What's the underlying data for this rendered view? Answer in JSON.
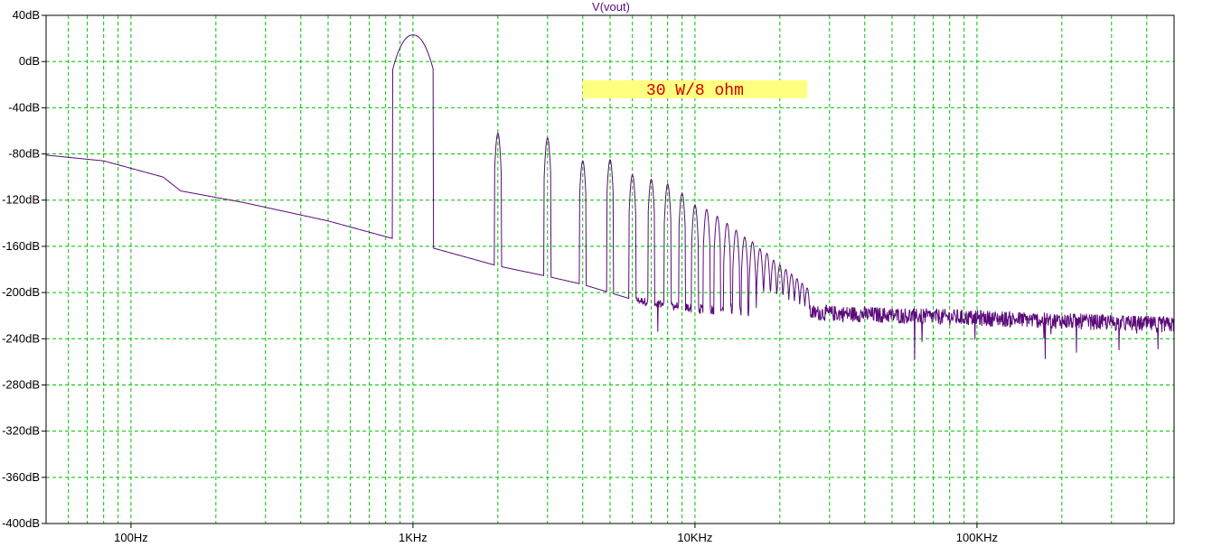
{
  "chart_data": {
    "type": "line",
    "title": "V(vout)",
    "xlabel": "",
    "ylabel": "",
    "xscale": "log",
    "xlim": [
      50,
      500000
    ],
    "ylim": [
      -400,
      40
    ],
    "grid": true,
    "colors": {
      "trace": "#5a0a78",
      "grid": "#00c000",
      "note_bg": "#ffff80",
      "note_text": "#d00000"
    },
    "x_ticks": [
      {
        "value": 100,
        "label": "100Hz"
      },
      {
        "value": 1000,
        "label": "1KHz"
      },
      {
        "value": 10000,
        "label": "10KHz"
      },
      {
        "value": 100000,
        "label": "100KHz"
      }
    ],
    "y_ticks": [
      {
        "value": 40,
        "label": "40dB"
      },
      {
        "value": 0,
        "label": "0dB"
      },
      {
        "value": -40,
        "label": "-40dB"
      },
      {
        "value": -80,
        "label": "-80dB"
      },
      {
        "value": -120,
        "label": "-120dB"
      },
      {
        "value": -160,
        "label": "-160dB"
      },
      {
        "value": -200,
        "label": "-200dB"
      },
      {
        "value": -240,
        "label": "-240dB"
      },
      {
        "value": -280,
        "label": "-280dB"
      },
      {
        "value": -320,
        "label": "-320dB"
      },
      {
        "value": -360,
        "label": "-360dB"
      },
      {
        "value": -400,
        "label": "-400dB"
      }
    ],
    "annotation": {
      "text": "30 W/8 ohm",
      "x": 4000,
      "x_end": 25000,
      "y": -24
    },
    "series": [
      {
        "fundamental": {
          "freq": 1000,
          "peak_db": 23
        },
        "harmonics": [
          {
            "freq": 2000,
            "peak_db": -62
          },
          {
            "freq": 3000,
            "peak_db": -66
          },
          {
            "freq": 4000,
            "peak_db": -86
          },
          {
            "freq": 5000,
            "peak_db": -85
          },
          {
            "freq": 6000,
            "peak_db": -98
          },
          {
            "freq": 7000,
            "peak_db": -102
          },
          {
            "freq": 8000,
            "peak_db": -106
          },
          {
            "freq": 9000,
            "peak_db": -114
          },
          {
            "freq": 10000,
            "peak_db": -124
          },
          {
            "freq": 11000,
            "peak_db": -128
          },
          {
            "freq": 12000,
            "peak_db": -134
          },
          {
            "freq": 13000,
            "peak_db": -140
          },
          {
            "freq": 14000,
            "peak_db": -146
          },
          {
            "freq": 15000,
            "peak_db": -152
          },
          {
            "freq": 16000,
            "peak_db": -156
          },
          {
            "freq": 17000,
            "peak_db": -162
          },
          {
            "freq": 18000,
            "peak_db": -166
          },
          {
            "freq": 19000,
            "peak_db": -172
          },
          {
            "freq": 20000,
            "peak_db": -176
          },
          {
            "freq": 21000,
            "peak_db": -180
          },
          {
            "freq": 22000,
            "peak_db": -184
          },
          {
            "freq": 23000,
            "peak_db": -188
          },
          {
            "freq": 24000,
            "peak_db": -192
          },
          {
            "freq": 25000,
            "peak_db": -196
          }
        ],
        "floor": [
          {
            "x": 50,
            "y": -81
          },
          {
            "x": 80,
            "y": -86
          },
          {
            "x": 130,
            "y": -100
          },
          {
            "x": 150,
            "y": -112
          },
          {
            "x": 250,
            "y": -122
          },
          {
            "x": 500,
            "y": -138
          },
          {
            "x": 900,
            "y": -155
          },
          {
            "x": 1200,
            "y": -162
          },
          {
            "x": 2000,
            "y": -177
          },
          {
            "x": 3000,
            "y": -186
          },
          {
            "x": 4000,
            "y": -193
          },
          {
            "x": 6000,
            "y": -206
          },
          {
            "x": 10000,
            "y": -214
          },
          {
            "x": 30000,
            "y": -218
          },
          {
            "x": 100000,
            "y": -222
          },
          {
            "x": 500000,
            "y": -228
          }
        ]
      }
    ]
  }
}
